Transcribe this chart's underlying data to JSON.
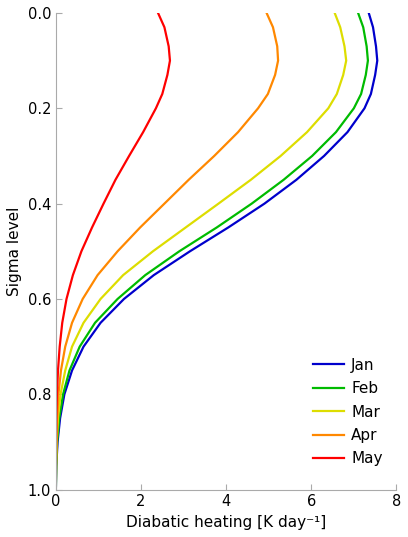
{
  "title": "",
  "xlabel": "Diabatic heating [K day⁻¹]",
  "ylabel": "Sigma level",
  "xlim": [
    0,
    8.0
  ],
  "ylim": [
    0.0,
    1.0
  ],
  "xticks": [
    0.0,
    2.0,
    4.0,
    6.0,
    8.0
  ],
  "yticks": [
    0.0,
    0.2,
    0.4,
    0.6,
    0.8,
    1.0
  ],
  "legend_labels": [
    "Jan",
    "Feb",
    "Mar",
    "Apr",
    "May"
  ],
  "line_colors": [
    "#0000cc",
    "#00bb00",
    "#dddd00",
    "#ff8800",
    "#ff0000"
  ],
  "line_width": 1.6,
  "series": {
    "Jan": {
      "sigma": [
        0.0,
        0.03,
        0.07,
        0.1,
        0.13,
        0.17,
        0.2,
        0.25,
        0.3,
        0.35,
        0.4,
        0.45,
        0.5,
        0.55,
        0.6,
        0.65,
        0.7,
        0.75,
        0.8,
        0.85,
        0.9,
        0.95,
        1.0
      ],
      "heating": [
        7.35,
        7.45,
        7.52,
        7.55,
        7.5,
        7.4,
        7.25,
        6.85,
        6.3,
        5.65,
        4.9,
        4.05,
        3.15,
        2.3,
        1.6,
        1.05,
        0.65,
        0.38,
        0.2,
        0.1,
        0.04,
        0.01,
        0.0
      ]
    },
    "Feb": {
      "sigma": [
        0.0,
        0.03,
        0.07,
        0.1,
        0.13,
        0.17,
        0.2,
        0.25,
        0.3,
        0.35,
        0.4,
        0.45,
        0.5,
        0.55,
        0.6,
        0.65,
        0.7,
        0.75,
        0.8,
        0.85,
        0.9,
        0.95,
        1.0
      ],
      "heating": [
        7.1,
        7.22,
        7.3,
        7.33,
        7.28,
        7.17,
        7.0,
        6.58,
        6.02,
        5.35,
        4.6,
        3.78,
        2.9,
        2.1,
        1.45,
        0.92,
        0.56,
        0.32,
        0.17,
        0.08,
        0.03,
        0.01,
        0.0
      ]
    },
    "Mar": {
      "sigma": [
        0.0,
        0.03,
        0.07,
        0.1,
        0.13,
        0.17,
        0.2,
        0.25,
        0.3,
        0.35,
        0.4,
        0.45,
        0.5,
        0.55,
        0.6,
        0.65,
        0.7,
        0.75,
        0.8,
        0.85,
        0.9,
        0.95,
        1.0
      ],
      "heating": [
        6.55,
        6.68,
        6.78,
        6.82,
        6.75,
        6.6,
        6.4,
        5.9,
        5.28,
        4.58,
        3.82,
        3.05,
        2.28,
        1.58,
        1.05,
        0.65,
        0.38,
        0.22,
        0.11,
        0.05,
        0.02,
        0.005,
        0.0
      ]
    },
    "Apr": {
      "sigma": [
        0.0,
        0.03,
        0.07,
        0.1,
        0.13,
        0.17,
        0.2,
        0.25,
        0.3,
        0.35,
        0.4,
        0.45,
        0.5,
        0.55,
        0.6,
        0.65,
        0.7,
        0.75,
        0.8,
        0.85,
        0.9,
        0.95,
        1.0
      ],
      "heating": [
        4.95,
        5.1,
        5.2,
        5.22,
        5.15,
        4.98,
        4.75,
        4.28,
        3.72,
        3.12,
        2.55,
        1.98,
        1.45,
        0.98,
        0.63,
        0.38,
        0.22,
        0.12,
        0.06,
        0.03,
        0.01,
        0.003,
        0.0
      ]
    },
    "May": {
      "sigma": [
        0.0,
        0.03,
        0.07,
        0.1,
        0.13,
        0.17,
        0.2,
        0.25,
        0.3,
        0.35,
        0.4,
        0.45,
        0.5,
        0.55,
        0.6,
        0.65,
        0.7,
        0.75,
        0.8,
        0.85,
        0.9,
        0.95,
        1.0
      ],
      "heating": [
        2.4,
        2.55,
        2.65,
        2.68,
        2.62,
        2.5,
        2.35,
        2.05,
        1.72,
        1.4,
        1.12,
        0.85,
        0.6,
        0.4,
        0.25,
        0.15,
        0.09,
        0.05,
        0.025,
        0.01,
        0.005,
        0.001,
        0.0
      ]
    }
  },
  "legend_fontsize": 11,
  "tick_fontsize": 10.5,
  "label_fontsize": 11,
  "background_color": "#ffffff",
  "spine_color": "#aaaaaa",
  "tick_color": "#aaaaaa"
}
